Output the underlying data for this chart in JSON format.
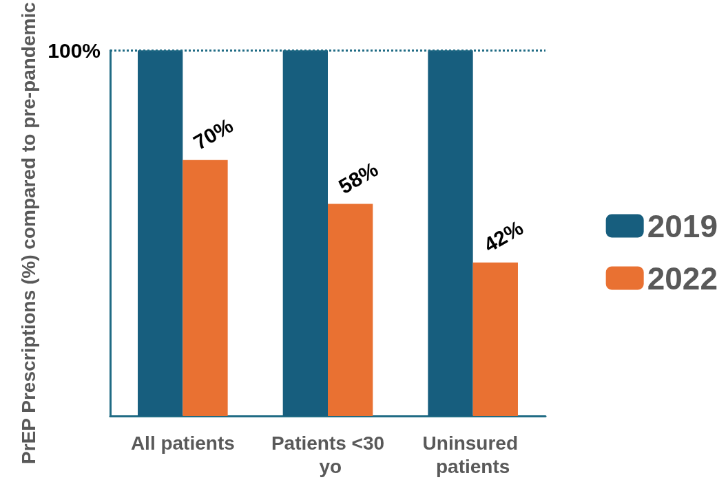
{
  "chart_data": {
    "type": "bar",
    "ylabel": "PrEP Prescriptions (%) compared to pre-pandemic",
    "categories": [
      "All patients",
      "Patients <30 yo",
      "Uninsured patients"
    ],
    "series": [
      {
        "name": "2019",
        "color": "#175e7e",
        "values": [
          100,
          100,
          100
        ]
      },
      {
        "name": "2022",
        "color": "#e97132",
        "values": [
          70,
          58,
          42
        ],
        "value_labels": [
          "70%",
          "58%",
          "42%"
        ]
      }
    ],
    "ylim": [
      0,
      100
    ],
    "yticks": [
      {
        "value": 100,
        "label": "100%"
      }
    ],
    "ref_lines": [
      {
        "axis": "y",
        "value": 100,
        "label": null,
        "color": "#1f6b84",
        "line_style": "dotted"
      }
    ],
    "legend": "right",
    "grid": false
  }
}
